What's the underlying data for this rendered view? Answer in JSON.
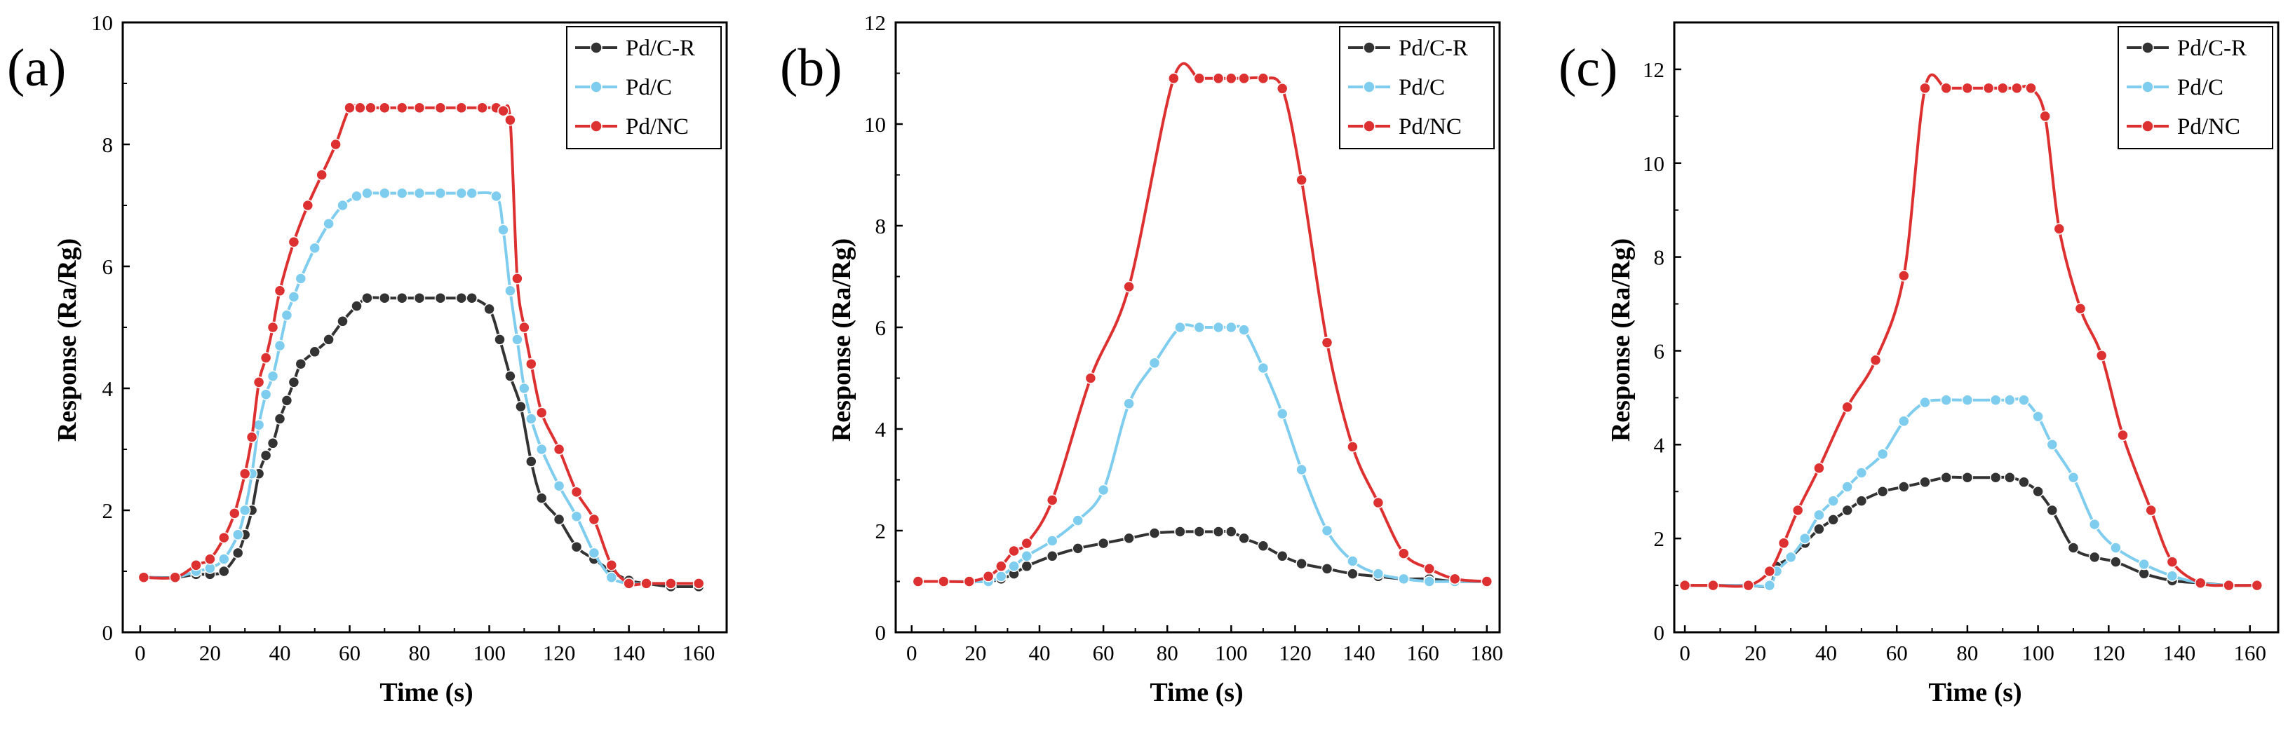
{
  "chart_data": [
    {
      "type": "line",
      "panel_label": "(a)",
      "xlabel": "Time (s)",
      "ylabel": "Response (Ra/Rg)",
      "xlim": [
        -5,
        168
      ],
      "ylim": [
        0,
        10
      ],
      "xticks": [
        0,
        20,
        40,
        60,
        80,
        100,
        120,
        140,
        160
      ],
      "yticks": [
        0,
        2,
        4,
        6,
        8,
        10
      ],
      "legend_position": "top-right",
      "grid": false,
      "series": [
        {
          "name": "Pd/C-R",
          "color": "#333333",
          "x": [
            1,
            10,
            16,
            20,
            24,
            28,
            30,
            32,
            34,
            36,
            38,
            40,
            42,
            44,
            46,
            50,
            54,
            58,
            62,
            65,
            70,
            75,
            80,
            86,
            92,
            95,
            100,
            103,
            106,
            109,
            112,
            115,
            120,
            125,
            130,
            135,
            140,
            145,
            152,
            160
          ],
          "values": [
            0.9,
            0.9,
            0.95,
            0.95,
            1.0,
            1.3,
            1.6,
            2.0,
            2.6,
            2.9,
            3.1,
            3.5,
            3.8,
            4.1,
            4.4,
            4.6,
            4.8,
            5.1,
            5.35,
            5.48,
            5.48,
            5.48,
            5.48,
            5.48,
            5.48,
            5.48,
            5.3,
            4.8,
            4.2,
            3.7,
            2.8,
            2.2,
            1.85,
            1.4,
            1.2,
            1.0,
            0.85,
            0.8,
            0.75,
            0.75
          ]
        },
        {
          "name": "Pd/C",
          "color": "#7fcdee",
          "x": [
            1,
            10,
            16,
            20,
            24,
            28,
            30,
            32,
            34,
            36,
            38,
            40,
            42,
            44,
            46,
            50,
            54,
            58,
            62,
            65,
            70,
            75,
            80,
            86,
            92,
            95,
            102,
            104,
            106,
            108,
            110,
            112,
            115,
            120,
            125,
            130,
            135,
            140,
            145,
            152,
            160
          ],
          "values": [
            0.9,
            0.9,
            1.0,
            1.05,
            1.2,
            1.6,
            2.0,
            2.6,
            3.4,
            3.9,
            4.2,
            4.7,
            5.2,
            5.5,
            5.8,
            6.3,
            6.7,
            7.0,
            7.15,
            7.2,
            7.2,
            7.2,
            7.2,
            7.2,
            7.2,
            7.2,
            7.15,
            6.6,
            5.6,
            4.8,
            4.0,
            3.5,
            3.0,
            2.4,
            1.9,
            1.3,
            0.9,
            0.8,
            0.8,
            0.8,
            0.8
          ]
        },
        {
          "name": "Pd/NC",
          "color": "#dd3030",
          "x": [
            1,
            10,
            16,
            20,
            24,
            27,
            30,
            32,
            34,
            36,
            38,
            40,
            44,
            48,
            52,
            56,
            60,
            63,
            66,
            70,
            75,
            80,
            86,
            92,
            98,
            102,
            104,
            106,
            108,
            110,
            112,
            115,
            120,
            125,
            130,
            135,
            140,
            145,
            152,
            160
          ],
          "values": [
            0.9,
            0.9,
            1.1,
            1.2,
            1.55,
            1.95,
            2.6,
            3.2,
            4.1,
            4.5,
            5.0,
            5.6,
            6.4,
            7.0,
            7.5,
            8.0,
            8.6,
            8.6,
            8.6,
            8.6,
            8.6,
            8.6,
            8.6,
            8.6,
            8.6,
            8.6,
            8.55,
            8.4,
            5.8,
            5.0,
            4.4,
            3.6,
            3.0,
            2.3,
            1.85,
            1.1,
            0.8,
            0.8,
            0.8,
            0.8
          ]
        }
      ]
    },
    {
      "type": "line",
      "panel_label": "(b)",
      "xlabel": "Time (s)",
      "ylabel": "Response (Ra/Rg)",
      "xlim": [
        -5,
        184
      ],
      "ylim": [
        0,
        12
      ],
      "xticks": [
        0,
        20,
        40,
        60,
        80,
        100,
        120,
        140,
        160,
        180
      ],
      "yticks": [
        0,
        2,
        4,
        6,
        8,
        10,
        12
      ],
      "legend_position": "top-right",
      "grid": false,
      "series": [
        {
          "name": "Pd/C-R",
          "color": "#333333",
          "x": [
            2,
            10,
            18,
            24,
            28,
            32,
            36,
            44,
            52,
            60,
            68,
            76,
            84,
            90,
            96,
            100,
            104,
            110,
            116,
            122,
            130,
            138,
            146,
            154,
            162,
            170,
            180
          ],
          "values": [
            1.0,
            1.0,
            1.0,
            1.0,
            1.05,
            1.15,
            1.3,
            1.5,
            1.65,
            1.75,
            1.85,
            1.95,
            1.98,
            1.98,
            1.98,
            1.98,
            1.85,
            1.7,
            1.5,
            1.35,
            1.25,
            1.15,
            1.1,
            1.05,
            1.05,
            1.0,
            1.0
          ]
        },
        {
          "name": "Pd/C",
          "color": "#7fcdee",
          "x": [
            2,
            10,
            18,
            24,
            28,
            32,
            36,
            44,
            52,
            60,
            68,
            76,
            84,
            90,
            96,
            100,
            104,
            110,
            116,
            122,
            130,
            138,
            146,
            154,
            162,
            170,
            180
          ],
          "values": [
            1.0,
            1.0,
            1.0,
            1.0,
            1.1,
            1.3,
            1.5,
            1.8,
            2.2,
            2.8,
            4.5,
            5.3,
            6.0,
            6.0,
            6.0,
            6.0,
            5.95,
            5.2,
            4.3,
            3.2,
            2.0,
            1.4,
            1.15,
            1.05,
            1.0,
            1.0,
            1.0
          ]
        },
        {
          "name": "Pd/NC",
          "color": "#dd3030",
          "x": [
            2,
            10,
            18,
            24,
            28,
            32,
            36,
            44,
            56,
            68,
            82,
            90,
            96,
            100,
            104,
            110,
            116,
            122,
            130,
            138,
            146,
            154,
            162,
            170,
            180
          ],
          "values": [
            1.0,
            1.0,
            1.0,
            1.1,
            1.3,
            1.6,
            1.75,
            2.6,
            5.0,
            6.8,
            10.9,
            10.9,
            10.9,
            10.9,
            10.9,
            10.9,
            10.7,
            8.9,
            5.7,
            3.65,
            2.55,
            1.55,
            1.25,
            1.05,
            1.0
          ]
        }
      ]
    },
    {
      "type": "line",
      "panel_label": "(c)",
      "xlabel": "Time (s)",
      "ylabel": "Response (Ra/Rg)",
      "xlim": [
        -3,
        168
      ],
      "ylim": [
        0,
        13
      ],
      "xticks": [
        0,
        20,
        40,
        60,
        80,
        100,
        120,
        140,
        160
      ],
      "yticks": [
        0,
        2,
        4,
        6,
        8,
        10,
        12
      ],
      "legend_position": "top-right",
      "grid": false,
      "series": [
        {
          "name": "Pd/C-R",
          "color": "#333333",
          "x": [
            0,
            8,
            18,
            24,
            26,
            30,
            34,
            38,
            42,
            46,
            50,
            56,
            62,
            68,
            74,
            80,
            88,
            92,
            96,
            100,
            104,
            110,
            116,
            122,
            130,
            138,
            146,
            154,
            162
          ],
          "values": [
            1.0,
            1.0,
            1.0,
            1.0,
            1.4,
            1.6,
            1.9,
            2.2,
            2.4,
            2.6,
            2.8,
            3.0,
            3.1,
            3.2,
            3.3,
            3.3,
            3.3,
            3.3,
            3.2,
            3.0,
            2.6,
            1.8,
            1.6,
            1.5,
            1.25,
            1.1,
            1.05,
            1.0,
            1.0
          ]
        },
        {
          "name": "Pd/C",
          "color": "#7fcdee",
          "x": [
            0,
            8,
            18,
            24,
            26,
            30,
            34,
            38,
            42,
            46,
            50,
            56,
            62,
            68,
            74,
            80,
            88,
            92,
            96,
            100,
            104,
            110,
            116,
            122,
            130,
            138,
            146,
            154,
            162
          ],
          "values": [
            1.0,
            1.0,
            1.0,
            1.0,
            1.3,
            1.6,
            2.0,
            2.5,
            2.8,
            3.1,
            3.4,
            3.8,
            4.5,
            4.9,
            4.95,
            4.95,
            4.95,
            4.95,
            4.95,
            4.6,
            4.0,
            3.3,
            2.3,
            1.8,
            1.45,
            1.2,
            1.05,
            1.0,
            1.0
          ]
        },
        {
          "name": "Pd/NC",
          "color": "#dd3030",
          "x": [
            0,
            8,
            18,
            24,
            28,
            32,
            38,
            46,
            54,
            62,
            68,
            74,
            80,
            86,
            90,
            94,
            98,
            102,
            106,
            112,
            118,
            124,
            132,
            138,
            146,
            154,
            162
          ],
          "values": [
            1.0,
            1.0,
            1.0,
            1.3,
            1.9,
            2.6,
            3.5,
            4.8,
            5.8,
            7.6,
            11.6,
            11.6,
            11.6,
            11.6,
            11.6,
            11.6,
            11.6,
            11.0,
            8.6,
            6.9,
            5.9,
            4.2,
            2.6,
            1.5,
            1.05,
            1.0,
            1.0
          ]
        }
      ]
    }
  ]
}
